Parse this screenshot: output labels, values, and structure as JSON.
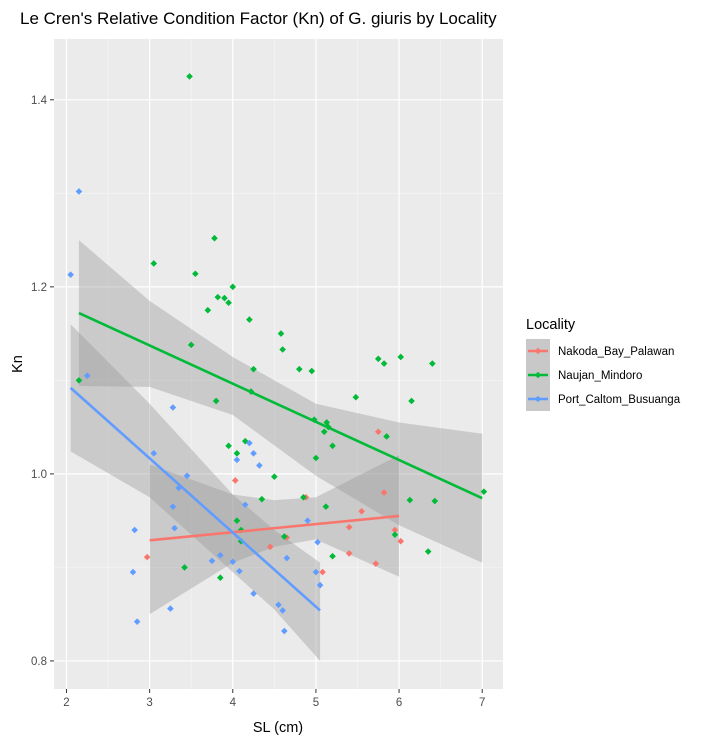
{
  "chart_data": {
    "type": "scatter",
    "title": "Le Cren's Relative Condition Factor (Kn) of G. giuris by Locality",
    "xlabel": "SL (cm)",
    "ylabel": "Kn",
    "xlim": [
      1.85,
      7.25
    ],
    "ylim": [
      0.77,
      1.465
    ],
    "x_ticks": [
      2,
      3,
      4,
      5,
      6,
      7
    ],
    "y_ticks": [
      0.8,
      1.0,
      1.2,
      1.4
    ],
    "y_tick_labels": [
      "0.8",
      "1.0",
      "1.2",
      "1.4"
    ],
    "grid": true,
    "legend_title": "Locality",
    "legend_position": "right",
    "series": [
      {
        "name": "Nakoda_Bay_Palawan",
        "color": "#F8766D",
        "points": [
          [
            2.97,
            0.911
          ],
          [
            4.03,
            0.993
          ],
          [
            4.45,
            0.922
          ],
          [
            4.65,
            0.932
          ],
          [
            4.88,
            0.975
          ],
          [
            5.08,
            0.895
          ],
          [
            5.4,
            0.915
          ],
          [
            5.4,
            0.943
          ],
          [
            5.55,
            0.96
          ],
          [
            5.72,
            0.904
          ],
          [
            5.75,
            1.045
          ],
          [
            5.82,
            0.98
          ],
          [
            6.02,
            0.928
          ],
          [
            5.95,
            0.94
          ]
        ],
        "fit": {
          "x": [
            3.0,
            6.0
          ],
          "y": [
            0.929,
            0.955
          ]
        },
        "ci": {
          "x": [
            3.0,
            4.0,
            4.5,
            5.0,
            6.0
          ],
          "upper": [
            1.01,
            0.978,
            0.972,
            0.975,
            1.02
          ],
          "lower": [
            0.85,
            0.905,
            0.922,
            0.93,
            0.89
          ]
        }
      },
      {
        "name": "Naujan_Mindoro",
        "color": "#00BA38",
        "points": [
          [
            2.15,
            1.1
          ],
          [
            3.05,
            1.225
          ],
          [
            3.42,
            0.9
          ],
          [
            3.48,
            1.425
          ],
          [
            3.5,
            1.138
          ],
          [
            3.55,
            1.214
          ],
          [
            3.7,
            1.175
          ],
          [
            3.78,
            1.252
          ],
          [
            3.8,
            1.078
          ],
          [
            3.82,
            1.189
          ],
          [
            3.85,
            0.889
          ],
          [
            3.9,
            1.188
          ],
          [
            3.95,
            1.183
          ],
          [
            3.95,
            1.03
          ],
          [
            4.0,
            1.2
          ],
          [
            4.05,
            1.022
          ],
          [
            4.05,
            0.95
          ],
          [
            4.1,
            0.928
          ],
          [
            4.1,
            0.94
          ],
          [
            4.15,
            1.035
          ],
          [
            4.2,
            1.165
          ],
          [
            4.22,
            1.088
          ],
          [
            4.25,
            1.112
          ],
          [
            4.35,
            0.973
          ],
          [
            4.5,
            0.997
          ],
          [
            4.58,
            1.15
          ],
          [
            4.6,
            1.133
          ],
          [
            4.62,
            0.933
          ],
          [
            4.8,
            1.112
          ],
          [
            4.85,
            0.975
          ],
          [
            4.95,
            1.11
          ],
          [
            4.98,
            1.058
          ],
          [
            5.0,
            1.017
          ],
          [
            5.1,
            1.045
          ],
          [
            5.12,
            0.965
          ],
          [
            5.13,
            1.055
          ],
          [
            5.15,
            1.05
          ],
          [
            5.2,
            0.912
          ],
          [
            5.2,
            1.03
          ],
          [
            5.48,
            1.082
          ],
          [
            5.75,
            1.123
          ],
          [
            5.82,
            1.118
          ],
          [
            5.85,
            1.04
          ],
          [
            5.95,
            0.935
          ],
          [
            6.02,
            1.125
          ],
          [
            6.13,
            0.972
          ],
          [
            6.15,
            1.078
          ],
          [
            6.35,
            0.917
          ],
          [
            6.4,
            1.118
          ],
          [
            6.43,
            0.971
          ],
          [
            7.02,
            0.981
          ]
        ],
        "fit": {
          "x": [
            2.15,
            7.0
          ],
          "y": [
            1.172,
            0.974
          ]
        },
        "ci": {
          "x": [
            2.15,
            3.0,
            4.0,
            5.0,
            6.0,
            7.0
          ],
          "upper": [
            1.25,
            1.185,
            1.125,
            1.075,
            1.055,
            1.043
          ],
          "lower": [
            1.094,
            1.093,
            1.063,
            0.998,
            0.945,
            0.905
          ]
        }
      },
      {
        "name": "Port_Caltom_Busuanga",
        "color": "#619CFF",
        "points": [
          [
            2.05,
            1.213
          ],
          [
            2.15,
            1.302
          ],
          [
            2.25,
            1.105
          ],
          [
            2.8,
            0.895
          ],
          [
            2.82,
            0.94
          ],
          [
            2.85,
            0.842
          ],
          [
            3.05,
            1.022
          ],
          [
            3.25,
            0.856
          ],
          [
            3.28,
            1.071
          ],
          [
            3.28,
            0.965
          ],
          [
            3.3,
            0.942
          ],
          [
            3.35,
            0.985
          ],
          [
            3.45,
            0.998
          ],
          [
            3.75,
            0.907
          ],
          [
            3.85,
            0.913
          ],
          [
            4.0,
            0.906
          ],
          [
            4.05,
            1.015
          ],
          [
            4.08,
            0.896
          ],
          [
            4.15,
            0.967
          ],
          [
            4.2,
            1.033
          ],
          [
            4.25,
            0.872
          ],
          [
            4.25,
            1.022
          ],
          [
            4.32,
            1.009
          ],
          [
            4.55,
            0.86
          ],
          [
            4.6,
            0.854
          ],
          [
            4.62,
            0.832
          ],
          [
            4.65,
            0.91
          ],
          [
            5.0,
            0.895
          ],
          [
            5.02,
            0.927
          ],
          [
            5.05,
            0.881
          ],
          [
            4.9,
            0.95
          ]
        ],
        "fit": {
          "x": [
            2.05,
            5.05
          ],
          "y": [
            1.092,
            0.854
          ]
        },
        "ci": {
          "x": [
            2.05,
            3.0,
            4.0,
            4.5,
            5.05
          ],
          "upper": [
            1.16,
            1.075,
            0.978,
            0.94,
            0.905
          ],
          "lower": [
            1.024,
            0.975,
            0.895,
            0.855,
            0.8
          ]
        }
      }
    ]
  }
}
